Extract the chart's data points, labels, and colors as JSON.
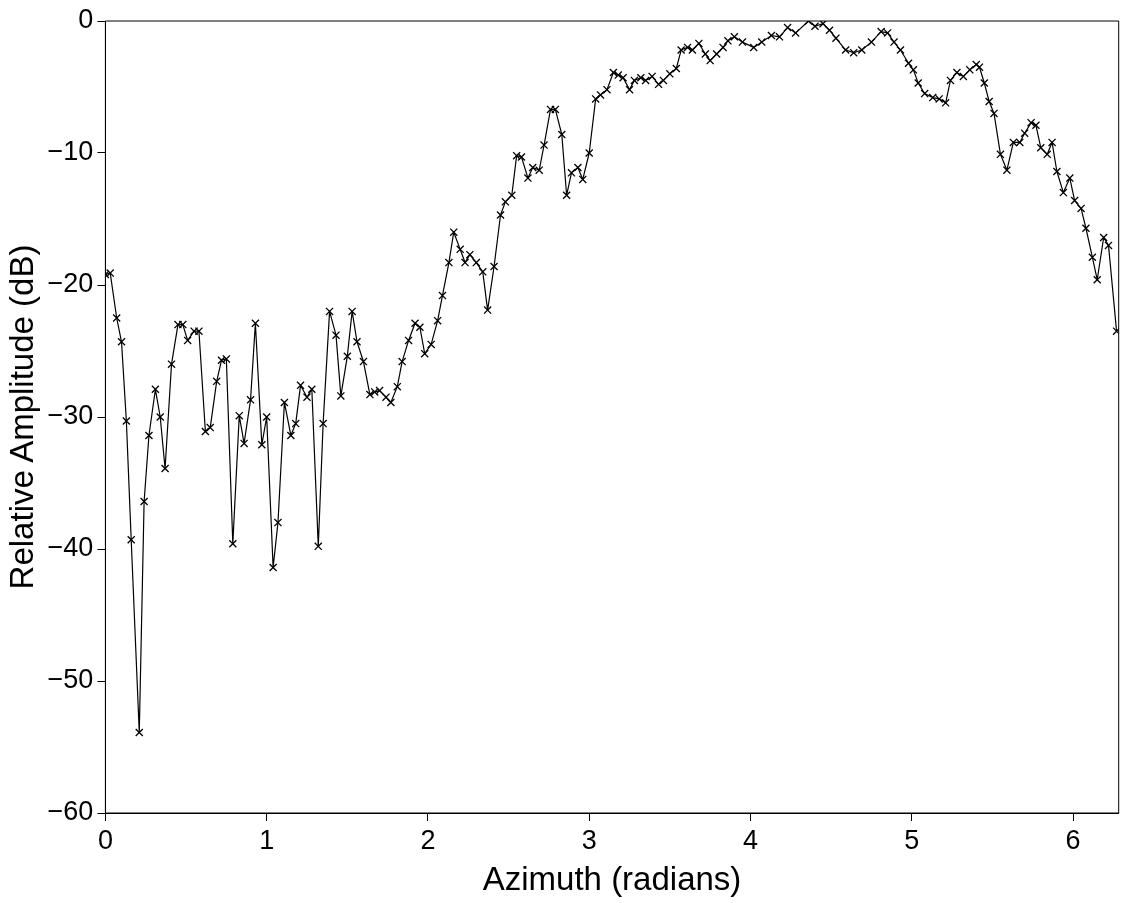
{
  "chart_data": {
    "type": "line",
    "xlabel": "Azimuth (radians)",
    "ylabel": "Relative Amplitude (dB)",
    "xlim": [
      0,
      6.2832
    ],
    "xticks": [
      0,
      1,
      2,
      3,
      4,
      5,
      6
    ],
    "ylim": [
      -60,
      0
    ],
    "yticks": [
      -60,
      -50,
      -40,
      -30,
      -20,
      -10,
      0
    ],
    "grid": false,
    "legend": false,
    "marker": "cross",
    "line_style": "solid",
    "series": [
      {
        "color": "#000000",
        "x": [
          0,
          0.03,
          0.07,
          0.1,
          0.13,
          0.16,
          0.21,
          0.24,
          0.27,
          0.31,
          0.34,
          0.37,
          0.41,
          0.45,
          0.48,
          0.51,
          0.55,
          0.58,
          0.62,
          0.65,
          0.69,
          0.72,
          0.75,
          0.79,
          0.83,
          0.86,
          0.9,
          0.93,
          0.97,
          1.0,
          1.04,
          1.07,
          1.11,
          1.15,
          1.18,
          1.21,
          1.25,
          1.28,
          1.32,
          1.35,
          1.39,
          1.43,
          1.46,
          1.5,
          1.53,
          1.56,
          1.6,
          1.64,
          1.67,
          1.7,
          1.74,
          1.77,
          1.81,
          1.84,
          1.88,
          1.92,
          1.95,
          1.98,
          2.02,
          2.06,
          2.09,
          2.13,
          2.16,
          2.2,
          2.23,
          2.26,
          2.3,
          2.34,
          2.37,
          2.41,
          2.45,
          2.48,
          2.52,
          2.55,
          2.58,
          2.62,
          2.65,
          2.69,
          2.72,
          2.76,
          2.79,
          2.83,
          2.86,
          2.89,
          2.93,
          2.96,
          3.0,
          3.04,
          3.07,
          3.11,
          3.15,
          3.18,
          3.21,
          3.25,
          3.28,
          3.32,
          3.35,
          3.39,
          3.43,
          3.46,
          3.5,
          3.54,
          3.57,
          3.61,
          3.64,
          3.68,
          3.72,
          3.75,
          3.79,
          3.83,
          3.86,
          3.9,
          3.95,
          4.02,
          4.07,
          4.13,
          4.18,
          4.23,
          4.28,
          4.36,
          4.4,
          4.45,
          4.49,
          4.53,
          4.59,
          4.64,
          4.69,
          4.75,
          4.81,
          4.85,
          4.89,
          4.93,
          4.98,
          5.01,
          5.04,
          5.08,
          5.13,
          5.17,
          5.21,
          5.24,
          5.28,
          5.32,
          5.36,
          5.4,
          5.42,
          5.45,
          5.48,
          5.51,
          5.55,
          5.59,
          5.63,
          5.67,
          5.7,
          5.74,
          5.77,
          5.8,
          5.84,
          5.87,
          5.9,
          5.94,
          5.98,
          6.01,
          6.05,
          6.08,
          6.12,
          6.15,
          6.19,
          6.22,
          6.27
        ],
        "values": [
          -19.2,
          -19.1,
          -22.5,
          -24.3,
          -30.3,
          -39.3,
          -53.9,
          -36.4,
          -31.4,
          -27.9,
          -30,
          -33.9,
          -26,
          -23,
          -23,
          -24.2,
          -23.5,
          -23.5,
          -31.1,
          -30.8,
          -27.3,
          -25.7,
          -25.6,
          -39.6,
          -29.9,
          -32,
          -28.7,
          -22.9,
          -32.1,
          -30,
          -41.4,
          -38,
          -28.9,
          -31.4,
          -30.5,
          -27.6,
          -28.5,
          -27.9,
          -39.8,
          -30.5,
          -22,
          -23.8,
          -28.4,
          -25.4,
          -22,
          -24.3,
          -25.8,
          -28.3,
          -28.1,
          -28,
          -28.5,
          -28.9,
          -27.7,
          -25.8,
          -24.2,
          -22.9,
          -23.2,
          -25.2,
          -24.5,
          -22.7,
          -20.8,
          -18.3,
          -16,
          -17.3,
          -18.3,
          -17.7,
          -18.3,
          -19,
          -21.9,
          -18.6,
          -14.7,
          -13.7,
          -13.2,
          -10.2,
          -10.3,
          -11.9,
          -11.1,
          -11.3,
          -9.4,
          -6.7,
          -6.7,
          -8.6,
          -13.2,
          -11.5,
          -11.1,
          -12,
          -10,
          -5.9,
          -5.6,
          -5.2,
          -3.9,
          -4.1,
          -4.3,
          -5.2,
          -4.5,
          -4.3,
          -4.5,
          -4.2,
          -4.8,
          -4.5,
          -4,
          -3.6,
          -2.2,
          -2,
          -2.2,
          -1.7,
          -2.5,
          -3,
          -2.5,
          -2,
          -1.5,
          -1.2,
          -1.6,
          -2.0,
          -1.6,
          -1.1,
          -1.2,
          -0.5,
          -0.9,
          0,
          -0.4,
          -0.2,
          -0.7,
          -1.3,
          -2.2,
          -2.4,
          -2.2,
          -1.6,
          -0.8,
          -0.9,
          -1.6,
          -2.2,
          -3.2,
          -3.7,
          -4.7,
          -5.5,
          -5.8,
          -5.9,
          -6.2,
          -4.5,
          -3.9,
          -4.2,
          -3.7,
          -3.3,
          -3.5,
          -4.7,
          -6.1,
          -7.0,
          -10.1,
          -11.3,
          -9.2,
          -9.2,
          -8.5,
          -7.7,
          -7.9,
          -9.6,
          -10.1,
          -9.2,
          -11.4,
          -13,
          -11.9,
          -13.6,
          -14.2,
          -15.7,
          -17.9,
          -19.6,
          -16.4,
          -17,
          -23.5
        ]
      }
    ]
  }
}
